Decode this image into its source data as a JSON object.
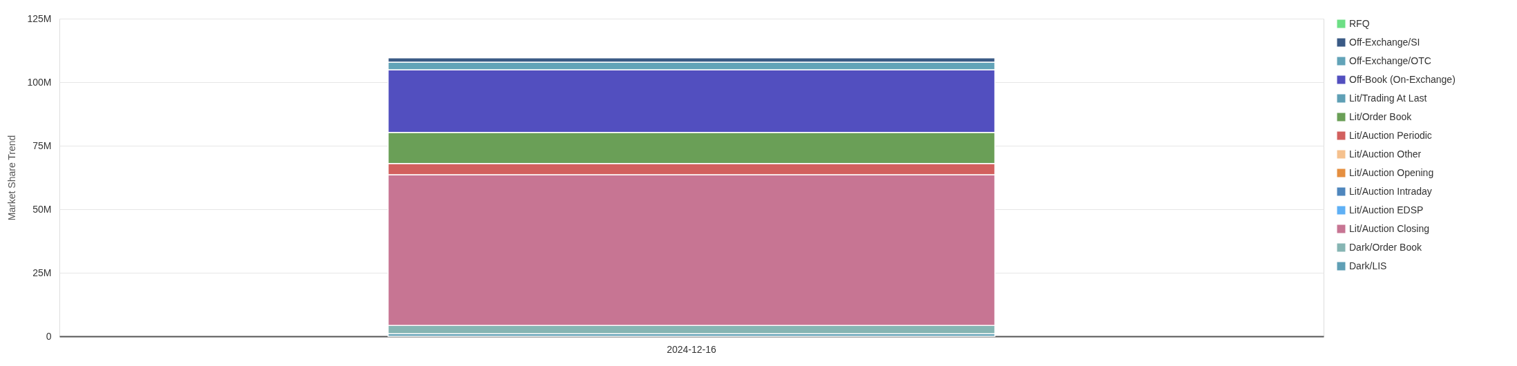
{
  "chart_data": {
    "type": "bar",
    "stacked": true,
    "categories": [
      "2024-12-16"
    ],
    "ylabel": "Market Share Trend",
    "ylim": [
      0,
      125000000
    ],
    "yticks": [
      0,
      {
        "value": 25000000,
        "label": "25M"
      },
      {
        "value": 50000000,
        "label": "50M"
      },
      {
        "value": 75000000,
        "label": "75M"
      },
      {
        "value": 100000000,
        "label": "100M"
      },
      {
        "value": 125000000,
        "label": "125M"
      }
    ],
    "grid": "y",
    "legend": "right",
    "series": [
      {
        "name": "Dark/LIS",
        "color": "#5f9fb5",
        "values": [
          1000000
        ]
      },
      {
        "name": "Dark/Order Book",
        "color": "#86b5b3",
        "values": [
          3300000
        ]
      },
      {
        "name": "Lit/Auction Closing",
        "color": "#c77593",
        "values": [
          59300000
        ]
      },
      {
        "name": "Lit/Auction EDSP",
        "color": "#5fb0f5",
        "values": [
          0
        ]
      },
      {
        "name": "Lit/Auction Intraday",
        "color": "#4e86bd",
        "values": [
          0
        ]
      },
      {
        "name": "Lit/Auction Opening",
        "color": "#e58f40",
        "values": [
          0
        ]
      },
      {
        "name": "Lit/Auction Other",
        "color": "#f5c18e",
        "values": [
          0
        ]
      },
      {
        "name": "Lit/Auction Periodic",
        "color": "#d2605e",
        "values": [
          4400000
        ]
      },
      {
        "name": "Lit/Order Book",
        "color": "#6a9f57",
        "values": [
          12200000
        ]
      },
      {
        "name": "Lit/Trading At Last",
        "color": "#5f9fb5",
        "values": [
          0
        ]
      },
      {
        "name": "Off-Book (On-Exchange)",
        "color": "#524fbf",
        "values": [
          24700000
        ]
      },
      {
        "name": "Off-Exchange/OTC",
        "color": "#62a3b8",
        "values": [
          3000000
        ]
      },
      {
        "name": "Off-Exchange/SI",
        "color": "#3a5a85",
        "values": [
          1700000
        ]
      },
      {
        "name": "RFQ",
        "color": "#6ddf85",
        "values": [
          0
        ]
      }
    ]
  }
}
